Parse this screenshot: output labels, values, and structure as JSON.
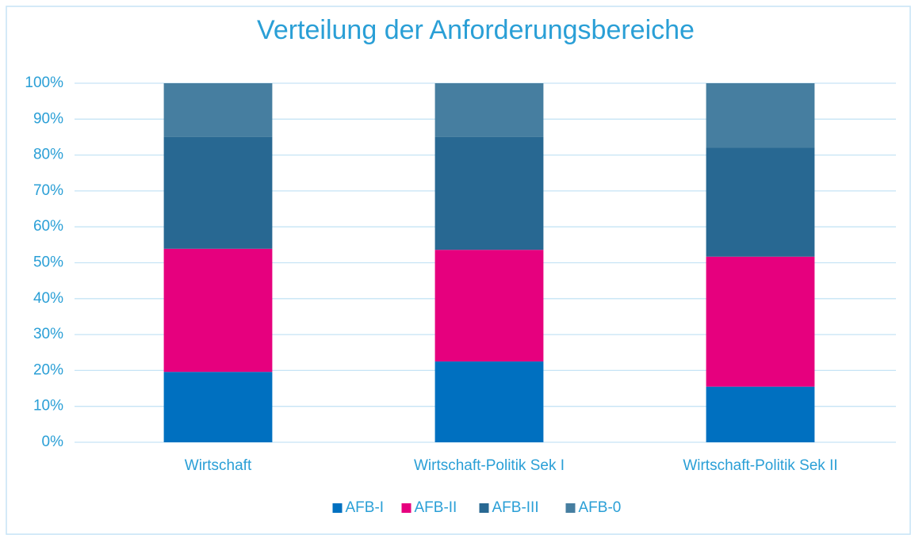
{
  "chart_data": {
    "type": "stacked_bar",
    "title": "Verteilung der Anforderungsbereiche",
    "categories": [
      "Wirtschaft",
      "Wirtschaft-Politik Sek I",
      "Wirtschaft-Politik Sek II"
    ],
    "series": [
      {
        "name": "AFB-I",
        "color": "#0070c0",
        "values": [
          19.6,
          22.5,
          15.5
        ]
      },
      {
        "name": "AFB-II",
        "color": "#e6007e",
        "values": [
          34.3,
          31.1,
          36.2
        ]
      },
      {
        "name": "AFB-III",
        "color": "#286892",
        "values": [
          31.1,
          31.4,
          30.4
        ]
      },
      {
        "name": "AFB-0",
        "color": "#467ea0",
        "values": [
          15.0,
          15.0,
          17.9
        ]
      }
    ],
    "ylim": [
      0,
      100
    ],
    "yticks": [
      {
        "value": 0,
        "label": "0%"
      },
      {
        "value": 10,
        "label": "10%"
      },
      {
        "value": 20,
        "label": "20%"
      },
      {
        "value": 30,
        "label": "30%"
      },
      {
        "value": 40,
        "label": "40%"
      },
      {
        "value": 50,
        "label": "50%"
      },
      {
        "value": 60,
        "label": "60%"
      },
      {
        "value": 70,
        "label": "70%"
      },
      {
        "value": 80,
        "label": "80%"
      },
      {
        "value": 90,
        "label": "90%"
      },
      {
        "value": 100,
        "label": "100%"
      }
    ],
    "grid": true,
    "legend": "bottom"
  }
}
